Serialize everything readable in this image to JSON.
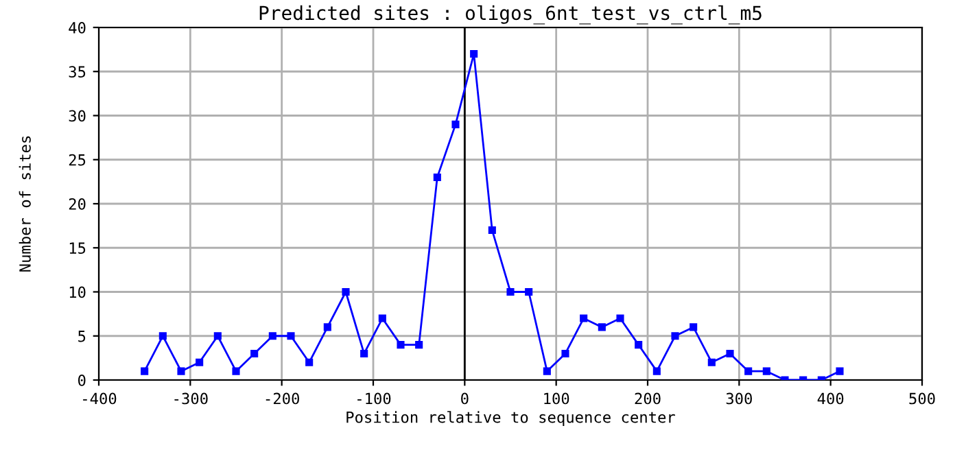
{
  "chart_data": {
    "type": "line",
    "title": "Predicted sites : oligos_6nt_test_vs_ctrl_m5",
    "xlabel": "Position relative to sequence center",
    "ylabel": "Number of sites",
    "x": [
      -350,
      -330,
      -310,
      -290,
      -270,
      -250,
      -230,
      -210,
      -190,
      -170,
      -150,
      -130,
      -110,
      -90,
      -70,
      -50,
      -30,
      -10,
      10,
      30,
      50,
      70,
      90,
      110,
      130,
      150,
      170,
      190,
      210,
      230,
      250,
      270,
      290,
      310,
      330,
      350,
      370,
      390,
      410
    ],
    "series": [
      {
        "color": "#0000ff",
        "values": [
          1,
          5,
          1,
          2,
          5,
          1,
          3,
          5,
          5,
          2,
          6,
          10,
          3,
          7,
          4,
          4,
          23,
          29,
          37,
          17,
          10,
          10,
          1,
          3,
          7,
          6,
          7,
          4,
          1,
          5,
          6,
          2,
          3,
          1,
          1,
          0,
          0,
          0,
          1
        ]
      }
    ],
    "xlim": [
      -400,
      500
    ],
    "xticks": [
      -400,
      -300,
      -200,
      -100,
      0,
      100,
      200,
      300,
      400,
      500
    ],
    "ylim": [
      0,
      40
    ],
    "yticks": [
      0,
      5,
      10,
      15,
      20,
      25,
      30,
      35,
      40
    ],
    "ref_lines": [
      {
        "axis": "x",
        "value": 0,
        "color": "#000000"
      }
    ],
    "grid": true,
    "marker": "square",
    "line_style": "solid",
    "legend": false
  }
}
